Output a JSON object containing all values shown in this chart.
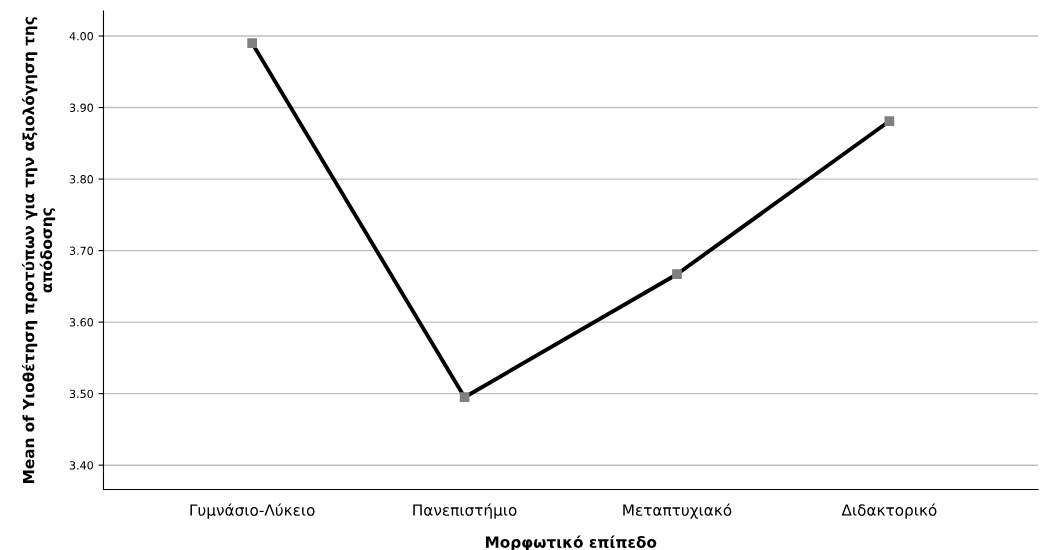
{
  "chart_data": {
    "type": "line",
    "xlabel": "Μορφωτικό επίπεδο",
    "ylabel": "Mean of Υιοθέτηση προτύπων για την αξιολόγηση της\nαπόδοσης",
    "categories": [
      "Γυμνάσιο-Λύκειο",
      "Πανεπιστήμιο",
      "Μεταπτυχιακό",
      "Διδακτορικό"
    ],
    "series": [
      {
        "color": "#000000",
        "colors": [
          "#808080",
          "#808080",
          "#808080",
          "#808080"
        ],
        "values": [
          3.99,
          3.495,
          3.667,
          3.881
        ]
      }
    ],
    "ylim": [
      3.366,
      4.035
    ],
    "yticks": [
      {
        "value": 3.4,
        "label": "3.40"
      },
      {
        "value": 3.5,
        "label": "3.50"
      },
      {
        "value": 3.6,
        "label": "3.60"
      },
      {
        "value": 3.7,
        "label": "3.70"
      },
      {
        "value": 3.8,
        "label": "3.80"
      },
      {
        "value": 3.9,
        "label": "3.90"
      },
      {
        "value": 4.0,
        "label": "4.00"
      }
    ],
    "grid": "y",
    "marker": "square",
    "line_style": "solid",
    "legend": false
  }
}
